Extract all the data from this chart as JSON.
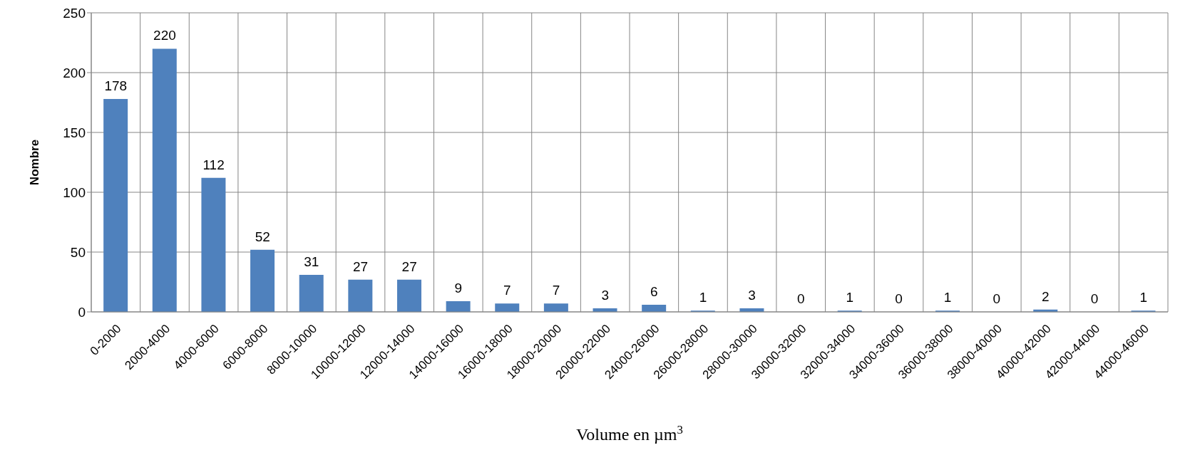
{
  "chart_data": {
    "type": "bar",
    "xlabel": "Volume en µm$^{3}$",
    "ylabel": "Nombre",
    "categories": [
      "0-2000",
      "2000-4000",
      "4000-6000",
      "6000-8000",
      "8000-10000",
      "10000-12000",
      "12000-14000",
      "14000-16000",
      "16000-18000",
      "18000-20000",
      "20000-22000",
      "24000-26000",
      "26000-28000",
      "28000-30000",
      "30000-32000",
      "32000-34000",
      "34000-36000",
      "36000-38000",
      "38000-40000",
      "40000-42000",
      "42000-44000",
      "44000-46000"
    ],
    "values": [
      178,
      220,
      112,
      52,
      31,
      27,
      27,
      9,
      7,
      7,
      3,
      6,
      1,
      3,
      0,
      1,
      0,
      1,
      0,
      2,
      0,
      1
    ],
    "color": "#4f81bd",
    "ylim": [
      0,
      250
    ],
    "yticks": [
      0,
      50,
      100,
      150,
      200,
      250
    ],
    "grid": true,
    "data_labels": true
  }
}
